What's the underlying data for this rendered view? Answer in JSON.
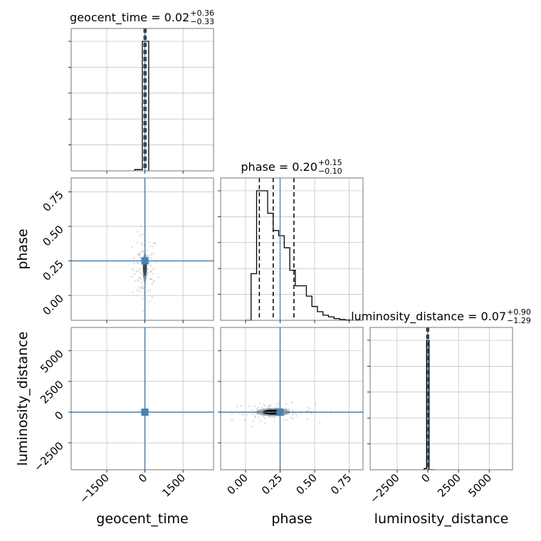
{
  "chart_data": {
    "type": "corner",
    "parameters": [
      "geocent_time",
      "phase",
      "luminosity_distance"
    ],
    "truth_color": "#4682b4",
    "titles": [
      {
        "param": "geocent_time",
        "prefix": "geocent_time = 0.02",
        "plus": "+0.36",
        "minus": "−0.33"
      },
      {
        "param": "phase",
        "prefix": "phase = 0.20",
        "plus": "+0.15",
        "minus": "−0.10"
      },
      {
        "param": "luminosity_distance",
        "prefix": "luminosity_distance = 0.07",
        "plus": "+0.90",
        "minus": "−1.29"
      }
    ],
    "axes": {
      "geocent_time": {
        "range": [
          -2900,
          2700
        ],
        "ticks": [
          -1500,
          0,
          1500
        ],
        "tick_labels": [
          "−1500",
          "0",
          "1500"
        ],
        "truth": 0
      },
      "phase": {
        "range": [
          -0.18,
          0.85
        ],
        "ticks": [
          0.0,
          0.25,
          0.5,
          0.75
        ],
        "tick_labels": [
          "0.00",
          "0.25",
          "0.50",
          "0.75"
        ],
        "truth": 0.25
      },
      "luminosity_distance": {
        "range": [
          -4700,
          6900
        ],
        "ticks": [
          -2500,
          0,
          2500,
          5000
        ],
        "tick_labels": [
          "−2500",
          "0",
          "2500",
          "5000"
        ],
        "truth": 0
      }
    },
    "histograms": {
      "geocent_time": {
        "bin_edges": [
          -400,
          -200,
          -100,
          150
        ],
        "counts": [
          0.01,
          0.01,
          1.0
        ],
        "quantile_lines": [
          -30,
          0,
          40
        ]
      },
      "phase": {
        "bin_edges": [
          0.0,
          0.04,
          0.08,
          0.12,
          0.16,
          0.2,
          0.24,
          0.28,
          0.32,
          0.36,
          0.4,
          0.44,
          0.48,
          0.52,
          0.56,
          0.6,
          0.64,
          0.68,
          0.72,
          0.76
        ],
        "counts": [
          0.0,
          0.27,
          0.75,
          0.75,
          0.62,
          0.52,
          0.49,
          0.42,
          0.29,
          0.2,
          0.2,
          0.14,
          0.08,
          0.05,
          0.03,
          0.02,
          0.01,
          0.005,
          0.002
        ],
        "quantile_lines": [
          0.1,
          0.2,
          0.35
        ]
      },
      "luminosity_distance": {
        "bin_edges": [
          -300,
          -100,
          100,
          600
        ],
        "counts": [
          0.01,
          1.0,
          0.0
        ],
        "quantile_lines": [
          -80,
          0,
          60
        ]
      }
    },
    "panels_2d": [
      {
        "x": "geocent_time",
        "y": "phase",
        "center": [
          0,
          0.2
        ],
        "spread": [
          15,
          0.06
        ],
        "scatter_spread": [
          250,
          0.12
        ]
      },
      {
        "x": "geocent_time",
        "y": "luminosity_distance",
        "center": [
          0,
          0
        ],
        "spread": [
          50,
          90
        ],
        "scatter_spread": [
          60,
          120
        ]
      },
      {
        "x": "phase",
        "y": "luminosity_distance",
        "center": [
          0.2,
          0
        ],
        "spread": [
          0.07,
          120
        ],
        "scatter_spread": [
          0.15,
          350
        ]
      }
    ],
    "xlabels": [
      "geocent_time",
      "phase",
      "luminosity_distance"
    ],
    "ylabels": [
      "",
      "phase",
      "luminosity_distance"
    ],
    "grid": true
  }
}
